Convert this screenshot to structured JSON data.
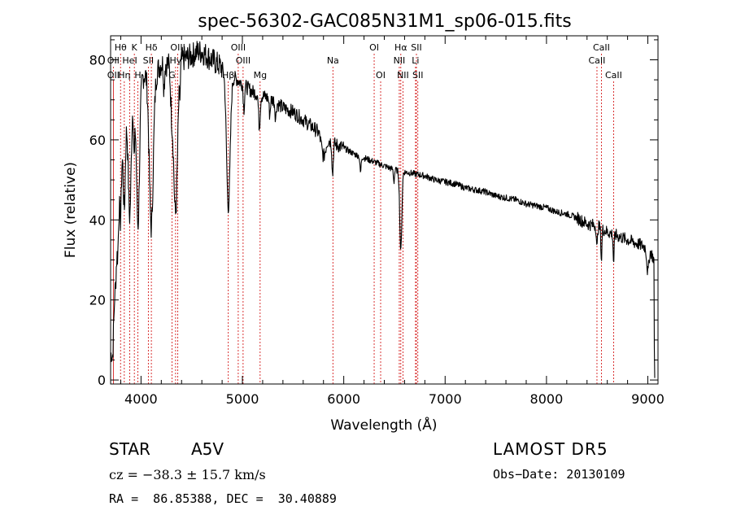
{
  "chart_data": {
    "type": "line",
    "title": "spec-56302-GAC085N31M1_sp06-015.fits",
    "xlabel": "Wavelength (Å)",
    "ylabel": "Flux (relative)",
    "xlim": [
      3700,
      9100
    ],
    "ylim": [
      -1,
      86
    ],
    "x_ticks": [
      4000,
      5000,
      6000,
      7000,
      8000,
      9000
    ],
    "y_ticks": [
      0,
      20,
      40,
      60,
      80
    ],
    "grid": false,
    "line_color": "#000000",
    "marker_color": "#d00000",
    "continuum": [
      [
        3700,
        5
      ],
      [
        3720,
        20
      ],
      [
        3740,
        35
      ],
      [
        3760,
        40
      ],
      [
        3780,
        48
      ],
      [
        3800,
        56
      ],
      [
        3830,
        62
      ],
      [
        3860,
        66
      ],
      [
        3900,
        70
      ],
      [
        3950,
        73
      ],
      [
        4000,
        75
      ],
      [
        4050,
        77
      ],
      [
        4100,
        76
      ],
      [
        4150,
        77
      ],
      [
        4200,
        79
      ],
      [
        4300,
        79
      ],
      [
        4400,
        80
      ],
      [
        4500,
        81
      ],
      [
        4550,
        82
      ],
      [
        4600,
        82
      ],
      [
        4650,
        81
      ],
      [
        4700,
        80
      ],
      [
        4800,
        78
      ],
      [
        4850,
        77.5
      ],
      [
        4900,
        76
      ],
      [
        5000,
        74
      ],
      [
        5100,
        72
      ],
      [
        5200,
        71
      ],
      [
        5300,
        70
      ],
      [
        5400,
        68
      ],
      [
        5500,
        67
      ],
      [
        5600,
        65
      ],
      [
        5700,
        63
      ],
      [
        5800,
        61
      ],
      [
        5900,
        59
      ],
      [
        6000,
        58
      ],
      [
        6100,
        56.5
      ],
      [
        6200,
        55.5
      ],
      [
        6300,
        54.5
      ],
      [
        6400,
        53.5
      ],
      [
        6500,
        52.5
      ],
      [
        6600,
        52
      ],
      [
        6700,
        51.5
      ],
      [
        6800,
        51
      ],
      [
        6900,
        50
      ],
      [
        7000,
        49.5
      ],
      [
        7100,
        49
      ],
      [
        7200,
        48
      ],
      [
        7300,
        47.5
      ],
      [
        7400,
        47
      ],
      [
        7500,
        46
      ],
      [
        7600,
        45.5
      ],
      [
        7700,
        45
      ],
      [
        7800,
        44
      ],
      [
        7900,
        43.5
      ],
      [
        8000,
        43
      ],
      [
        8100,
        42
      ],
      [
        8200,
        41.5
      ],
      [
        8300,
        40.5
      ],
      [
        8400,
        39
      ],
      [
        8500,
        38.5
      ],
      [
        8600,
        37
      ],
      [
        8700,
        36
      ],
      [
        8800,
        35
      ],
      [
        8900,
        34
      ],
      [
        9000,
        33
      ],
      [
        9030,
        32
      ],
      [
        9060,
        30
      ]
    ],
    "absorption": [
      [
        3720,
        12,
        8
      ],
      [
        3735,
        10,
        8
      ],
      [
        3750,
        11,
        8
      ],
      [
        3771,
        12,
        8
      ],
      [
        3798,
        15,
        8
      ],
      [
        3835,
        20,
        10
      ],
      [
        3889,
        28,
        14
      ],
      [
        3933,
        15,
        6
      ],
      [
        3970,
        35,
        15
      ],
      [
        4101,
        38,
        20
      ],
      [
        4227,
        6,
        5
      ],
      [
        4300,
        8,
        10
      ],
      [
        4340,
        38,
        20
      ],
      [
        4384,
        6,
        5
      ],
      [
        4861,
        34,
        18
      ],
      [
        5015,
        6,
        6
      ],
      [
        5167,
        8,
        8
      ],
      [
        5270,
        4,
        6
      ],
      [
        5328,
        4,
        6
      ],
      [
        5800,
        5,
        20
      ],
      [
        5890,
        8,
        6
      ],
      [
        6165,
        4,
        6
      ],
      [
        6495,
        3,
        5
      ],
      [
        6563,
        20,
        10
      ],
      [
        8498,
        6,
        5
      ],
      [
        8542,
        8,
        5
      ],
      [
        8662,
        7,
        5
      ],
      [
        9000,
        6,
        10
      ]
    ],
    "end_drop": [
      [
        9060,
        30
      ],
      [
        9064,
        8
      ],
      [
        9068,
        0.5
      ]
    ],
    "noise_seed": 7,
    "line_markers": [
      {
        "label": "Hθ",
        "x": 3798,
        "row": 1
      },
      {
        "label": "K",
        "x": 3934,
        "row": 1
      },
      {
        "label": "Hδ",
        "x": 4102,
        "row": 1
      },
      {
        "label": "OIII",
        "x": 4363,
        "row": 1
      },
      {
        "label": "OIII",
        "x": 4959,
        "row": 1
      },
      {
        "label": "OI",
        "x": 6300,
        "row": 1
      },
      {
        "label": "Hα",
        "x": 6563,
        "row": 1
      },
      {
        "label": "SII",
        "x": 6717,
        "row": 1
      },
      {
        "label": "CaII",
        "x": 8542,
        "row": 1
      },
      {
        "label": "OII",
        "x": 3727,
        "row": 2
      },
      {
        "label": "HeI",
        "x": 3889,
        "row": 2
      },
      {
        "label": "SII",
        "x": 4072,
        "row": 2
      },
      {
        "label": "Hγ",
        "x": 4341,
        "row": 2
      },
      {
        "label": "OIII",
        "x": 5007,
        "row": 2
      },
      {
        "label": "Na",
        "x": 5893,
        "row": 2
      },
      {
        "label": "NII",
        "x": 6548,
        "row": 2
      },
      {
        "label": "Li",
        "x": 6708,
        "row": 2
      },
      {
        "label": "CaII",
        "x": 8498,
        "row": 2
      },
      {
        "label": "OII",
        "x": 3727,
        "row": 3
      },
      {
        "label": "Hη",
        "x": 3835,
        "row": 3
      },
      {
        "label": "H",
        "x": 3969,
        "row": 3
      },
      {
        "label": "G",
        "x": 4305,
        "row": 3
      },
      {
        "label": "Hβ",
        "x": 4861,
        "row": 3
      },
      {
        "label": "Mg",
        "x": 5175,
        "row": 3
      },
      {
        "label": "OI",
        "x": 6364,
        "row": 3
      },
      {
        "label": "NII",
        "x": 6584,
        "row": 3
      },
      {
        "label": "SII",
        "x": 6731,
        "row": 3
      },
      {
        "label": "CaII",
        "x": 8662,
        "row": 3
      }
    ]
  },
  "footer": {
    "class_label": "STAR",
    "subclass": "A5V",
    "survey": "LAMOST DR5",
    "cz": "cz = −38.3 ± 15.7 km/s",
    "obs_date": "Obs−Date: 20130109",
    "coords": "RA =  86.85388, DEC =  30.40889"
  }
}
